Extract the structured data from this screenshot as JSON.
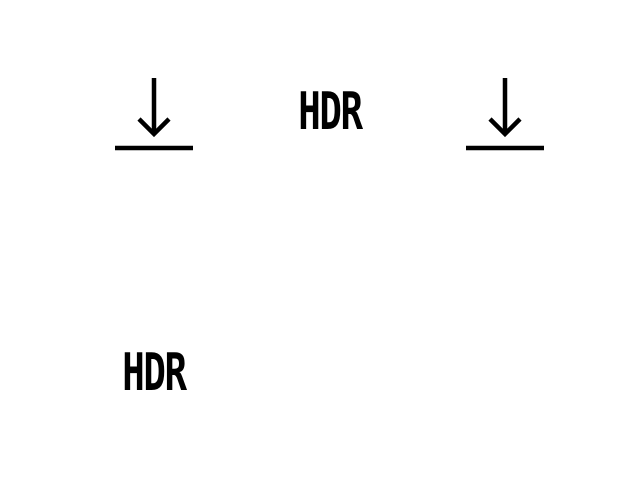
{
  "colors": {
    "background": "#ffffff",
    "foreground": "#000000"
  },
  "icons": [
    {
      "name": "download-icon"
    },
    {
      "name": "hdr-icon",
      "label": "HDR"
    },
    {
      "name": "download-icon"
    },
    {
      "name": "hdr-icon",
      "label": "HDR"
    }
  ]
}
